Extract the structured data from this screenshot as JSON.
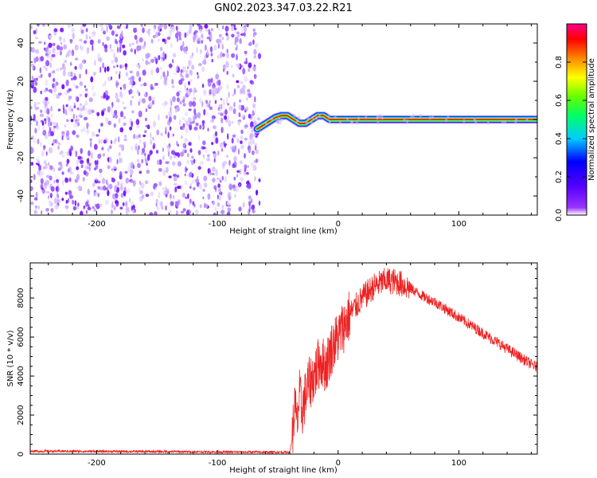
{
  "figure": {
    "title": "GN02.2023.347.03.22.R21"
  },
  "chart_data": [
    {
      "type": "heatmap",
      "title": "GN02.2023.347.03.22.R21",
      "xlabel": "Height of straight line (km)",
      "ylabel": "Frequency (Hz)",
      "xlim": [
        -255,
        165
      ],
      "ylim": [
        -50,
        50
      ],
      "x_ticks": [
        -200,
        -100,
        0,
        100
      ],
      "y_ticks": [
        -40,
        -20,
        0,
        20,
        40
      ],
      "grid": false,
      "noise_region": {
        "x": [
          -255,
          -65
        ],
        "y": [
          -50,
          50
        ],
        "description_values": "scattered low-amplitude purple speckle"
      },
      "ridge": {
        "x": [
          -67,
          -62,
          -57,
          -52,
          -47,
          -42,
          -37,
          -32,
          -27,
          -22,
          -17,
          -12,
          -7,
          0,
          40,
          80,
          120,
          165
        ],
        "y": [
          -5,
          -3,
          -1,
          1,
          2,
          2,
          0,
          -2,
          -2,
          0,
          2,
          2,
          0,
          0,
          0,
          0,
          0,
          0
        ]
      },
      "colorbar": {
        "label": "Normalized spectral amplitude",
        "range": [
          0,
          1
        ],
        "ticks": [
          0.0,
          0.2,
          0.4,
          0.6,
          0.8
        ],
        "tick_labels": [
          "0.0",
          "0.2",
          "0.4",
          "0.6",
          "0.8"
        ],
        "colormap": [
          "#ffffff",
          "#7f00ff",
          "#0000ff",
          "#00ffff",
          "#00ff00",
          "#ffff00",
          "#ff0000",
          "#ff0080"
        ]
      }
    },
    {
      "type": "line",
      "xlabel": "Height of straight line (km)",
      "ylabel": "SNR (10 * v/v)",
      "xlim": [
        -255,
        165
      ],
      "ylim": [
        0,
        9800
      ],
      "x_ticks": [
        -200,
        -100,
        0,
        100
      ],
      "y_ticks": [
        0,
        2000,
        4000,
        6000,
        8000
      ],
      "grid": false,
      "color": "#ee2222",
      "series": [
        {
          "x": [
            -255,
            -200,
            -150,
            -100,
            -60,
            -40,
            -38,
            -36,
            -34,
            -32,
            -30,
            -25,
            -20,
            -15,
            -10,
            -5,
            0,
            10,
            20,
            30,
            40,
            50,
            60,
            70,
            80,
            90,
            100,
            110,
            120,
            130,
            140,
            150,
            160,
            165
          ],
          "y": [
            150,
            140,
            130,
            110,
            100,
            100,
            800,
            2500,
            1500,
            3000,
            2200,
            3500,
            4000,
            4800,
            4500,
            5500,
            6000,
            7200,
            8000,
            8600,
            8900,
            8800,
            8500,
            8100,
            7800,
            7400,
            7000,
            6600,
            6200,
            5800,
            5400,
            5000,
            4600,
            4450
          ]
        }
      ]
    }
  ]
}
